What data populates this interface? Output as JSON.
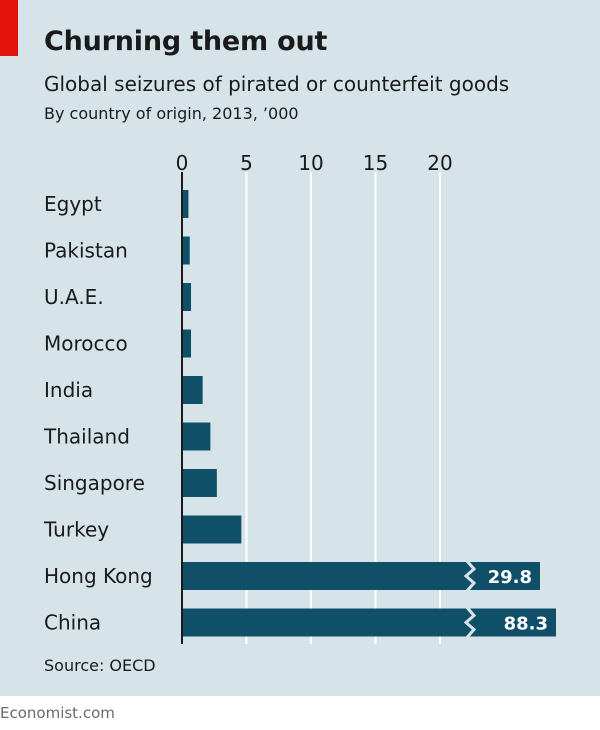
{
  "header": {
    "title": "Churning them out",
    "subtitle": "Global seizures of pirated or counterfeit goods",
    "units": "By country of origin, 2013, ’000"
  },
  "footer": {
    "source": "Source: OECD",
    "brand": "Economist.com"
  },
  "colors": {
    "background": "#d6e4ea",
    "bar": "#0f5068",
    "accent": "#e3120b",
    "gridline": "#ffffff"
  },
  "chart_data": {
    "type": "bar",
    "orientation": "horizontal",
    "title": "Churning them out",
    "subtitle": "Global seizures of pirated or counterfeit goods",
    "xlabel": "By country of origin, 2013, ’000",
    "ylabel": "",
    "xlim": [
      0,
      20
    ],
    "xticks": [
      0,
      5,
      10,
      15,
      20
    ],
    "tick_labels": [
      "0",
      "5",
      "10",
      "15",
      "20"
    ],
    "grid": true,
    "categories": [
      "Egypt",
      "Pakistan",
      "U.A.E.",
      "Morocco",
      "India",
      "Thailand",
      "Singapore",
      "Turkey",
      "Hong Kong",
      "China"
    ],
    "values": [
      0.5,
      0.6,
      0.7,
      0.7,
      1.6,
      2.2,
      2.7,
      4.6,
      29.8,
      88.3
    ],
    "value_labels": [
      "",
      "",
      "",
      "",
      "",
      "",
      "",
      "",
      "29.8",
      "88.3"
    ],
    "truncated": [
      false,
      false,
      false,
      false,
      false,
      false,
      false,
      false,
      true,
      true
    ]
  }
}
